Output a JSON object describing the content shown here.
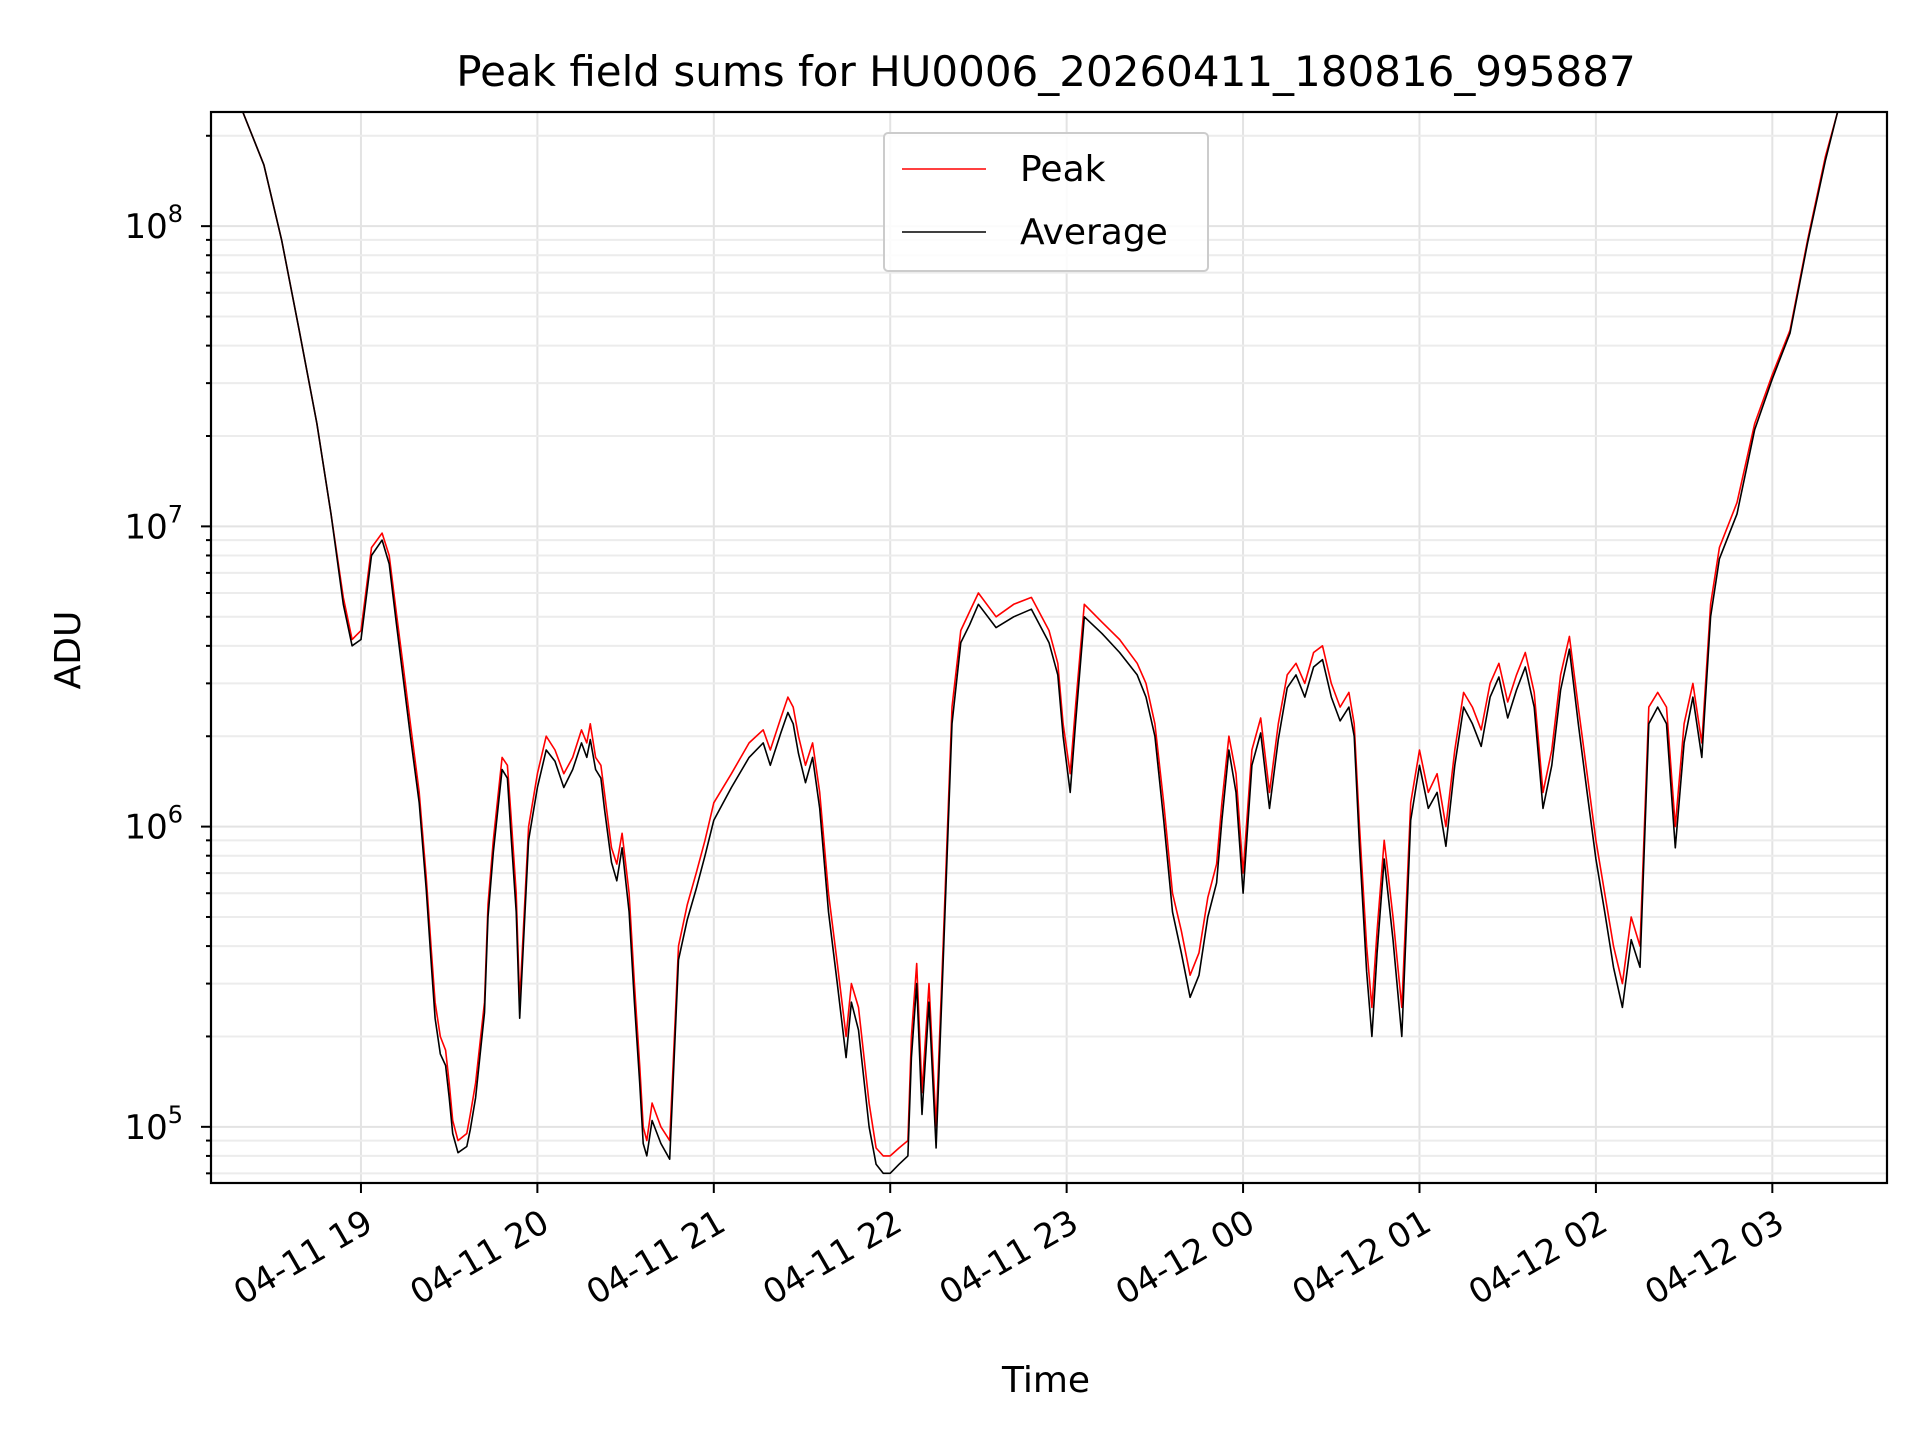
{
  "chart_data": {
    "type": "line",
    "title": "Peak field sums for HU0006_20260411_180816_995887",
    "xlabel": "Time",
    "ylabel": "ADU",
    "yscale": "log",
    "ylim": [
      65000,
      240000000
    ],
    "xlim_hours": [
      -0.85,
      8.65
    ],
    "grid": true,
    "legend_position": "top-center",
    "x_tick_labels": [
      "04-11 19",
      "04-11 20",
      "04-11 21",
      "04-11 22",
      "04-11 23",
      "04-12 00",
      "04-12 01",
      "04-12 02",
      "04-12 03"
    ],
    "x_tick_hours": [
      0,
      1,
      2,
      3,
      4,
      5,
      6,
      7,
      8
    ],
    "y_ticks": [
      {
        "value": 100000,
        "base": "10",
        "exp": "5"
      },
      {
        "value": 1000000,
        "base": "10",
        "exp": "6"
      },
      {
        "value": 10000000,
        "base": "10",
        "exp": "7"
      },
      {
        "value": 100000000,
        "base": "10",
        "exp": "8"
      }
    ],
    "time_axis_note": "x values are hours after 2026-04-11 19:00",
    "series": [
      {
        "name": "Peak",
        "color": "#ff0000",
        "x": [
          -0.67,
          -0.55,
          -0.45,
          -0.35,
          -0.25,
          -0.17,
          -0.1,
          -0.05,
          0.0,
          0.06,
          0.12,
          0.16,
          0.2,
          0.24,
          0.28,
          0.33,
          0.37,
          0.4,
          0.42,
          0.45,
          0.48,
          0.5,
          0.52,
          0.55,
          0.6,
          0.62,
          0.65,
          0.7,
          0.72,
          0.75,
          0.8,
          0.83,
          0.85,
          0.88,
          0.9,
          0.95,
          1.0,
          1.05,
          1.1,
          1.15,
          1.2,
          1.25,
          1.28,
          1.3,
          1.33,
          1.36,
          1.38,
          1.42,
          1.45,
          1.48,
          1.52,
          1.55,
          1.58,
          1.6,
          1.62,
          1.65,
          1.7,
          1.75,
          1.8,
          1.85,
          1.9,
          1.95,
          2.0,
          2.1,
          2.2,
          2.28,
          2.32,
          2.38,
          2.42,
          2.45,
          2.48,
          2.52,
          2.56,
          2.6,
          2.65,
          2.7,
          2.75,
          2.78,
          2.82,
          2.88,
          2.92,
          2.96,
          3.0,
          3.05,
          3.1,
          3.12,
          3.15,
          3.18,
          3.22,
          3.26,
          3.3,
          3.35,
          3.4,
          3.45,
          3.5,
          3.6,
          3.7,
          3.8,
          3.9,
          3.95,
          3.98,
          4.02,
          4.05,
          4.1,
          4.2,
          4.3,
          4.4,
          4.45,
          4.5,
          4.55,
          4.6,
          4.65,
          4.7,
          4.75,
          4.8,
          4.85,
          4.88,
          4.92,
          4.96,
          5.0,
          5.05,
          5.1,
          5.15,
          5.2,
          5.25,
          5.3,
          5.35,
          5.4,
          5.45,
          5.5,
          5.55,
          5.6,
          5.63,
          5.66,
          5.7,
          5.73,
          5.76,
          5.8,
          5.85,
          5.9,
          5.95,
          6.0,
          6.05,
          6.1,
          6.15,
          6.2,
          6.25,
          6.3,
          6.35,
          6.4,
          6.45,
          6.5,
          6.55,
          6.6,
          6.65,
          6.7,
          6.75,
          6.8,
          6.85,
          6.9,
          6.95,
          7.0,
          7.05,
          7.1,
          7.15,
          7.2,
          7.25,
          7.3,
          7.35,
          7.4,
          7.45,
          7.5,
          7.55,
          7.6,
          7.65,
          7.7,
          7.8,
          7.9,
          8.0,
          8.1,
          8.2,
          8.3,
          8.37
        ],
        "values": [
          240000000,
          160000000,
          90000000,
          45000000,
          22000000,
          11000000,
          5800000,
          4200000,
          4500000,
          8500000,
          9500000,
          8000000,
          5200000,
          3400000,
          2200000,
          1300000,
          680000,
          380000,
          260000,
          200000,
          180000,
          140000,
          105000,
          90000,
          95000,
          110000,
          140000,
          260000,
          550000,
          900000,
          1700000,
          1600000,
          1100000,
          600000,
          260000,
          1000000,
          1500000,
          2000000,
          1800000,
          1500000,
          1700000,
          2100000,
          1900000,
          2200000,
          1700000,
          1600000,
          1300000,
          850000,
          750000,
          950000,
          600000,
          300000,
          160000,
          100000,
          90000,
          120000,
          100000,
          90000,
          400000,
          550000,
          700000,
          900000,
          1200000,
          1500000,
          1900000,
          2100000,
          1800000,
          2300000,
          2700000,
          2500000,
          2000000,
          1600000,
          1900000,
          1300000,
          600000,
          350000,
          200000,
          300000,
          250000,
          120000,
          85000,
          80000,
          80000,
          85000,
          90000,
          200000,
          350000,
          130000,
          300000,
          100000,
          400000,
          2500000,
          4500000,
          5200000,
          6000000,
          5000000,
          5500000,
          5800000,
          4500000,
          3500000,
          2200000,
          1500000,
          2500000,
          5500000,
          4800000,
          4200000,
          3500000,
          3000000,
          2200000,
          1200000,
          600000,
          450000,
          320000,
          380000,
          580000,
          750000,
          1200000,
          2000000,
          1500000,
          700000,
          1800000,
          2300000,
          1300000,
          2200000,
          3200000,
          3500000,
          3000000,
          3800000,
          4000000,
          3000000,
          2500000,
          2800000,
          2200000,
          1000000,
          400000,
          250000,
          450000,
          900000,
          500000,
          250000,
          1200000,
          1800000,
          1300000,
          1500000,
          1000000,
          1800000,
          2800000,
          2500000,
          2100000,
          3000000,
          3500000,
          2600000,
          3200000,
          3800000,
          2800000,
          1300000,
          1800000,
          3200000,
          4300000,
          2500000,
          1500000,
          900000,
          600000,
          400000,
          300000,
          500000,
          400000,
          2500000,
          2800000,
          2500000,
          1000000,
          2200000,
          3000000,
          1900000,
          5500000,
          8500000,
          12000000,
          22000000,
          32000000,
          45000000,
          90000000,
          170000000,
          240000000
        ]
      },
      {
        "name": "Average",
        "color": "#000000",
        "x": [
          -0.67,
          -0.55,
          -0.45,
          -0.35,
          -0.25,
          -0.17,
          -0.1,
          -0.05,
          0.0,
          0.06,
          0.12,
          0.16,
          0.2,
          0.24,
          0.28,
          0.33,
          0.37,
          0.4,
          0.42,
          0.45,
          0.48,
          0.5,
          0.52,
          0.55,
          0.6,
          0.62,
          0.65,
          0.7,
          0.72,
          0.75,
          0.8,
          0.83,
          0.85,
          0.88,
          0.9,
          0.95,
          1.0,
          1.05,
          1.1,
          1.15,
          1.2,
          1.25,
          1.28,
          1.3,
          1.33,
          1.36,
          1.38,
          1.42,
          1.45,
          1.48,
          1.52,
          1.55,
          1.58,
          1.6,
          1.62,
          1.65,
          1.7,
          1.75,
          1.8,
          1.85,
          1.9,
          1.95,
          2.0,
          2.1,
          2.2,
          2.28,
          2.32,
          2.38,
          2.42,
          2.45,
          2.48,
          2.52,
          2.56,
          2.6,
          2.65,
          2.7,
          2.75,
          2.78,
          2.82,
          2.88,
          2.92,
          2.96,
          3.0,
          3.05,
          3.1,
          3.12,
          3.15,
          3.18,
          3.22,
          3.26,
          3.3,
          3.35,
          3.4,
          3.45,
          3.5,
          3.6,
          3.7,
          3.8,
          3.9,
          3.95,
          3.98,
          4.02,
          4.05,
          4.1,
          4.2,
          4.3,
          4.4,
          4.45,
          4.5,
          4.55,
          4.6,
          4.65,
          4.7,
          4.75,
          4.8,
          4.85,
          4.88,
          4.92,
          4.96,
          5.0,
          5.05,
          5.1,
          5.15,
          5.2,
          5.25,
          5.3,
          5.35,
          5.4,
          5.45,
          5.5,
          5.55,
          5.6,
          5.63,
          5.66,
          5.7,
          5.73,
          5.76,
          5.8,
          5.85,
          5.9,
          5.95,
          6.0,
          6.05,
          6.1,
          6.15,
          6.2,
          6.25,
          6.3,
          6.35,
          6.4,
          6.45,
          6.5,
          6.55,
          6.6,
          6.65,
          6.7,
          6.75,
          6.8,
          6.85,
          6.9,
          6.95,
          7.0,
          7.05,
          7.1,
          7.15,
          7.2,
          7.25,
          7.3,
          7.35,
          7.4,
          7.45,
          7.5,
          7.55,
          7.6,
          7.65,
          7.7,
          7.8,
          7.9,
          8.0,
          8.1,
          8.2,
          8.3,
          8.37
        ],
        "values": [
          240000000,
          160000000,
          90000000,
          45000000,
          22000000,
          11000000,
          5500000,
          4000000,
          4200000,
          8000000,
          9000000,
          7500000,
          4800000,
          3100000,
          2000000,
          1200000,
          620000,
          340000,
          230000,
          175000,
          160000,
          125000,
          95000,
          82000,
          86000,
          98000,
          125000,
          240000,
          500000,
          820000,
          1550000,
          1450000,
          950000,
          520000,
          230000,
          900000,
          1350000,
          1800000,
          1650000,
          1350000,
          1550000,
          1900000,
          1700000,
          1950000,
          1550000,
          1450000,
          1150000,
          760000,
          660000,
          850000,
          520000,
          260000,
          140000,
          88000,
          80000,
          105000,
          88000,
          78000,
          360000,
          490000,
          620000,
          800000,
          1050000,
          1350000,
          1700000,
          1900000,
          1600000,
          2050000,
          2400000,
          2200000,
          1750000,
          1400000,
          1700000,
          1150000,
          520000,
          300000,
          170000,
          260000,
          210000,
          100000,
          75000,
          70000,
          70000,
          75000,
          80000,
          170000,
          300000,
          110000,
          260000,
          85000,
          350000,
          2200000,
          4100000,
          4700000,
          5500000,
          4600000,
          5000000,
          5300000,
          4100000,
          3200000,
          2000000,
          1300000,
          2200000,
          5000000,
          4400000,
          3800000,
          3200000,
          2700000,
          2000000,
          1050000,
          520000,
          380000,
          270000,
          320000,
          500000,
          650000,
          1050000,
          1800000,
          1300000,
          600000,
          1600000,
          2050000,
          1150000,
          1950000,
          2900000,
          3200000,
          2700000,
          3400000,
          3600000,
          2700000,
          2250000,
          2500000,
          2000000,
          860000,
          330000,
          200000,
          380000,
          780000,
          420000,
          200000,
          1050000,
          1600000,
          1150000,
          1300000,
          860000,
          1600000,
          2500000,
          2200000,
          1850000,
          2700000,
          3150000,
          2300000,
          2850000,
          3400000,
          2500000,
          1150000,
          1600000,
          2850000,
          3900000,
          2200000,
          1300000,
          780000,
          520000,
          340000,
          250000,
          420000,
          340000,
          2200000,
          2500000,
          2200000,
          850000,
          1900000,
          2700000,
          1700000,
          5000000,
          7800000,
          11000000,
          21000000,
          31000000,
          44000000,
          88000000,
          165000000,
          240000000
        ]
      }
    ]
  }
}
